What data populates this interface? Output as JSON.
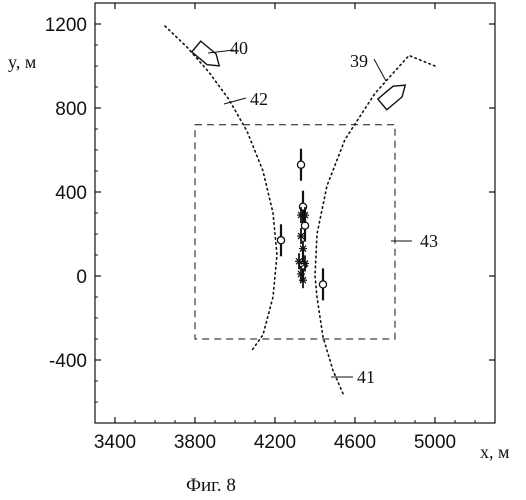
{
  "chart_data": {
    "type": "scatter",
    "caption": "Фиг. 8",
    "xlabel": "x, м",
    "ylabel": "y, м",
    "xlim": [
      3300,
      5300
    ],
    "ylim": [
      -700,
      1300
    ],
    "x_ticks": [
      3400,
      3800,
      4200,
      4600,
      5000
    ],
    "y_ticks": [
      -400,
      0,
      400,
      800,
      1200
    ],
    "grid": false,
    "series": [
      {
        "marker": "circle",
        "points": [
          [
            4230,
            170
          ],
          [
            4330,
            530
          ],
          [
            4340,
            330
          ],
          [
            4350,
            240
          ],
          [
            4340,
            50
          ],
          [
            4440,
            -40
          ]
        ]
      },
      {
        "marker": "star",
        "points": [
          [
            4330,
            290
          ],
          [
            4350,
            290
          ],
          [
            4330,
            190
          ],
          [
            4340,
            130
          ],
          [
            4320,
            70
          ],
          [
            4350,
            60
          ],
          [
            4330,
            10
          ],
          [
            4340,
            -20
          ]
        ]
      }
    ],
    "tracks": [
      {
        "label": "41",
        "points": [
          [
            4540,
            -560
          ],
          [
            4490,
            -450
          ],
          [
            4440,
            -290
          ],
          [
            4410,
            -100
          ],
          [
            4400,
            0
          ],
          [
            4410,
            200
          ],
          [
            4460,
            430
          ],
          [
            4550,
            650
          ],
          [
            4700,
            870
          ],
          [
            4870,
            1050
          ],
          [
            5000,
            1000
          ]
        ]
      },
      {
        "label": "42",
        "points": [
          [
            3650,
            1190
          ],
          [
            3760,
            1090
          ],
          [
            3870,
            970
          ],
          [
            3970,
            840
          ],
          [
            4060,
            690
          ],
          [
            4140,
            500
          ],
          [
            4190,
            300
          ],
          [
            4210,
            100
          ],
          [
            4190,
            -100
          ],
          [
            4140,
            -280
          ],
          [
            4080,
            -360
          ]
        ]
      }
    ],
    "ships": [
      {
        "label": "39",
        "x": 4790,
        "y": 860
      },
      {
        "label": "40",
        "x": 3860,
        "y": 1050
      }
    ],
    "region": {
      "label": "43",
      "x_min": 3800,
      "x_max": 4800,
      "y_min": -300,
      "y_max": 720
    }
  }
}
